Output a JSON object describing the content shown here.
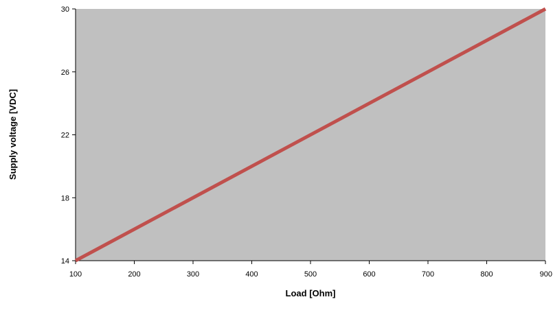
{
  "chart_data": {
    "type": "line",
    "title": "",
    "xlabel": "Load [Ohm]",
    "ylabel": "Supply voltage [VDC]",
    "xlim": [
      100,
      900
    ],
    "ylim": [
      14,
      30
    ],
    "x_ticks": [
      100,
      200,
      300,
      400,
      500,
      600,
      700,
      800,
      900
    ],
    "y_ticks": [
      14,
      18,
      22,
      26,
      30
    ],
    "grid": false,
    "legend": "none",
    "series": [
      {
        "x": [
          100,
          900
        ],
        "y": [
          14,
          30
        ],
        "color": "#c0504d"
      }
    ],
    "plot_background": "#c0c0c0"
  }
}
